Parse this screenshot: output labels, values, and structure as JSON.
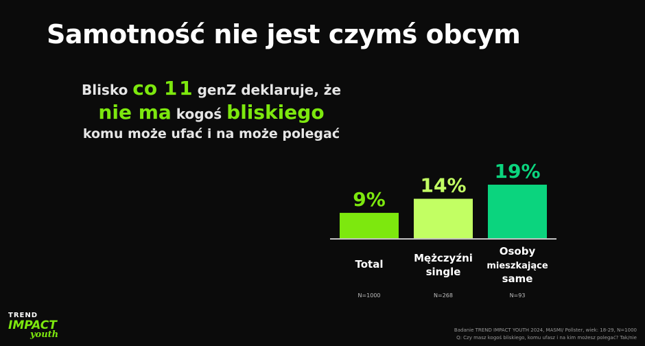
{
  "title": "Samotność nie jest czymś obcym",
  "headline": {
    "l1_a": "Blisko ",
    "l1_b": "co 1 1",
    "l1_c": " genZ deklaruje, że",
    "l2_a": "nie ma",
    "l2_b": " kogoś ",
    "l2_c": "bliskiego",
    "l3": "komu może ufać i na może polegać"
  },
  "chart_data": {
    "type": "bar",
    "categories": [
      "Total",
      "Mężczyźni single",
      "Osoby mieszkające same"
    ],
    "category_lines": [
      [
        "Total"
      ],
      [
        "Mężczyźni",
        "single"
      ],
      [
        "Osoby",
        "mieszkające",
        "same"
      ]
    ],
    "values": [
      9,
      14,
      19
    ],
    "value_labels": [
      "9%",
      "14%",
      "19%"
    ],
    "sample_sizes": [
      "N=1000",
      "N=268",
      "N=93"
    ],
    "colors": [
      "#7de80e",
      "#c2ff63",
      "#0bd47e"
    ],
    "unit": "%"
  },
  "logo": {
    "trend": "TREND",
    "impact": "IMPACT",
    "youth": "youth"
  },
  "source": {
    "line1": "Badanie TREND IMPACT YOUTH 2024, MASMI/ Pollster, wiek: 18-29, N=1000",
    "line2": "Q: Czy masz kogoś bliskiego, komu ufasz i na kim możesz polegać? Tak/nie"
  }
}
